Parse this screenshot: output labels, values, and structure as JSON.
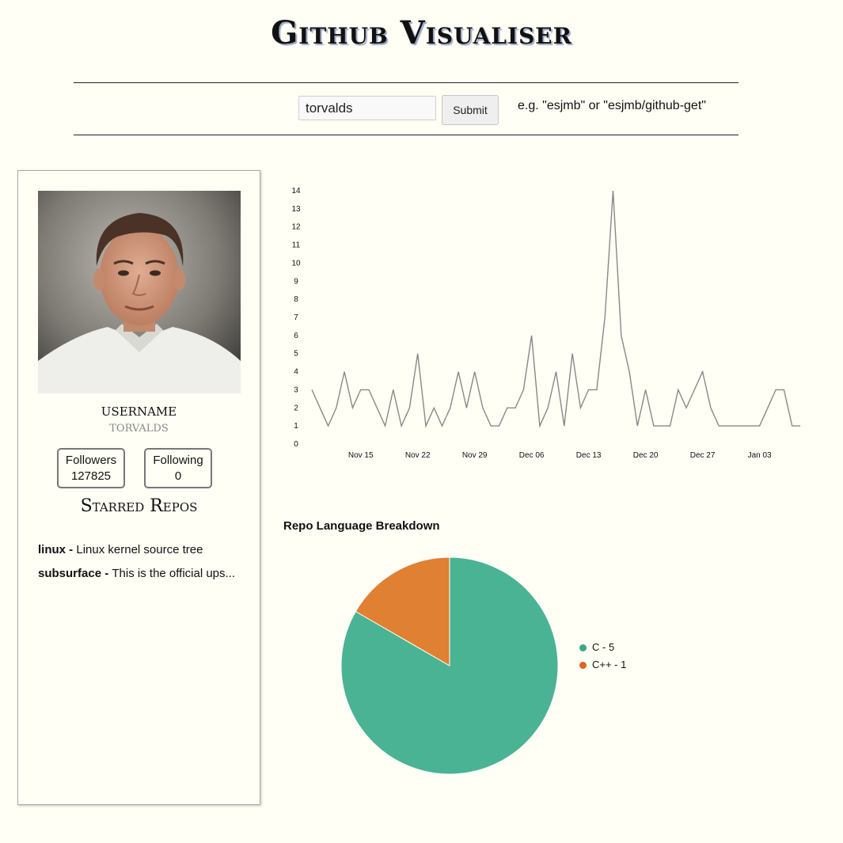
{
  "header": {
    "title": "Github Visualiser"
  },
  "search": {
    "value": "torvalds",
    "placeholder": "",
    "submit_label": "Submit",
    "hint": "e.g. \"esjmb\" or \"esjmb/github-get\""
  },
  "profile": {
    "avatar_alt": "torvalds avatar",
    "username_label": "USERNAME",
    "username": "TORVALDS",
    "followers_label": "Followers",
    "followers": "127825",
    "following_label": "Following",
    "following": "0",
    "starred_title": "Starred Repos",
    "starred": [
      {
        "name": "linux",
        "sep": " - ",
        "desc": "Linux kernel source tree"
      },
      {
        "name": "subsurface",
        "sep": " - ",
        "desc": "This is the official ups..."
      }
    ]
  },
  "pie": {
    "title": "Repo Language Breakdown"
  },
  "colors": {
    "line": "#888888",
    "c": "#4ab393",
    "cpp": "#e08032",
    "background": "#fffff6"
  },
  "chart_data": [
    {
      "type": "line",
      "title": "",
      "xlabel": "",
      "ylabel": "",
      "ylim": [
        0,
        14
      ],
      "yticks": [
        0,
        1,
        2,
        3,
        4,
        5,
        6,
        7,
        8,
        9,
        10,
        11,
        12,
        13,
        14
      ],
      "xtick_labels": [
        "Nov 15",
        "Nov 22",
        "Nov 29",
        "Dec 06",
        "Dec 13",
        "Dec 20",
        "Dec 27",
        "Jan 03"
      ],
      "xtick_index": [
        6,
        13,
        20,
        27,
        34,
        41,
        48,
        55
      ],
      "series": [
        {
          "name": "activity",
          "values": [
            3,
            2,
            1,
            2,
            4,
            2,
            3,
            3,
            2,
            1,
            3,
            1,
            2,
            5,
            1,
            2,
            1,
            2,
            4,
            2,
            4,
            2,
            1,
            1,
            2,
            2,
            3,
            6,
            1,
            2,
            4,
            1,
            5,
            2,
            3,
            3,
            7,
            14,
            6,
            4,
            1,
            3,
            1,
            1,
            1,
            3,
            2,
            3,
            4,
            2,
            1,
            1,
            1,
            1,
            1,
            1,
            2,
            3,
            3,
            1,
            1
          ]
        }
      ]
    },
    {
      "type": "pie",
      "title": "Repo Language Breakdown",
      "slices": [
        {
          "label": "C",
          "value": 5,
          "legend": "C - 5"
        },
        {
          "label": "C++",
          "value": 1,
          "legend": "C++ - 1"
        }
      ]
    }
  ]
}
